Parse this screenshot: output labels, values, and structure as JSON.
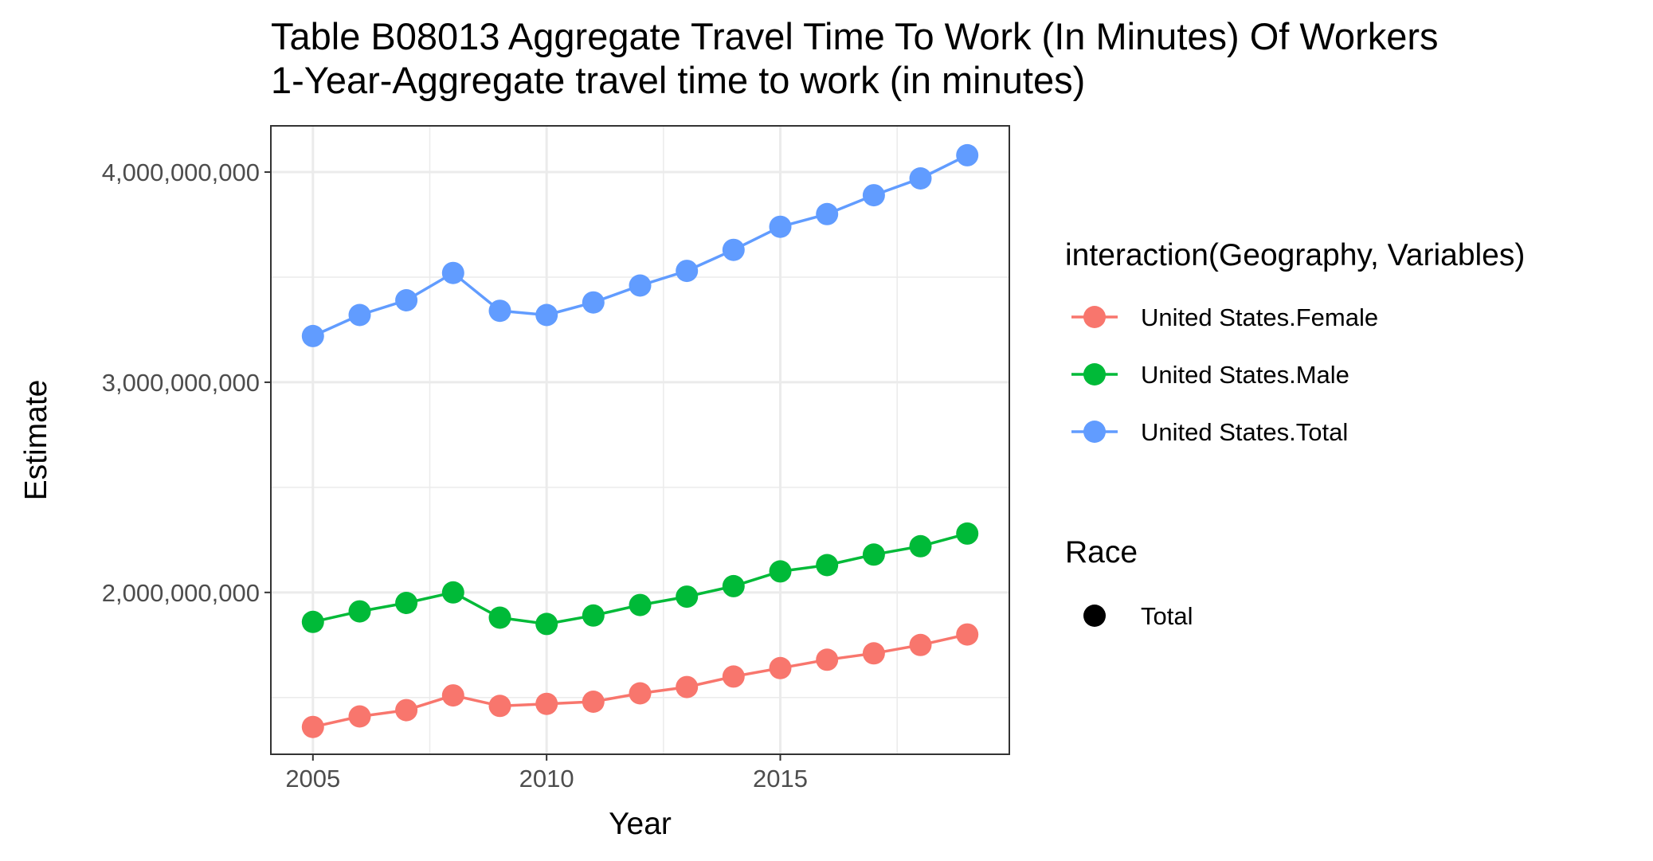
{
  "chart_data": {
    "type": "line",
    "title": "Table B08013 Aggregate Travel Time To Work (In Minutes) Of Workers",
    "subtitle": "1-Year-Aggregate travel time to work (in minutes)",
    "xlabel": "Year",
    "ylabel": "Estimate",
    "x": [
      2005,
      2006,
      2007,
      2008,
      2009,
      2010,
      2011,
      2012,
      2013,
      2014,
      2015,
      2016,
      2017,
      2018,
      2019
    ],
    "xlim": [
      2004.1,
      2019.9
    ],
    "ylim": [
      1230000000,
      4220000000
    ],
    "x_ticks": [
      2005,
      2010,
      2015
    ],
    "x_tick_labels": [
      "2005",
      "2010",
      "2015"
    ],
    "y_ticks": [
      2000000000,
      3000000000,
      4000000000
    ],
    "y_tick_labels": [
      "2,000,000,000",
      "3,000,000,000",
      "4,000,000,000"
    ],
    "grid": true,
    "legend_position": "right",
    "series": [
      {
        "name": "United States.Female",
        "color": "#F8766D",
        "values": [
          1360000000,
          1410000000,
          1440000000,
          1510000000,
          1460000000,
          1470000000,
          1480000000,
          1520000000,
          1550000000,
          1600000000,
          1640000000,
          1680000000,
          1710000000,
          1750000000,
          1800000000
        ]
      },
      {
        "name": "United States.Male",
        "color": "#00BA38",
        "values": [
          1860000000,
          1910000000,
          1950000000,
          2000000000,
          1880000000,
          1850000000,
          1890000000,
          1940000000,
          1980000000,
          2030000000,
          2100000000,
          2130000000,
          2180000000,
          2220000000,
          2280000000
        ]
      },
      {
        "name": "United States.Total",
        "color": "#619CFF",
        "values": [
          3220000000,
          3320000000,
          3390000000,
          3520000000,
          3340000000,
          3320000000,
          3380000000,
          3460000000,
          3530000000,
          3630000000,
          3740000000,
          3800000000,
          3890000000,
          3970000000,
          4080000000
        ]
      }
    ],
    "legend": {
      "color_title": "interaction(Geography, Variables)",
      "color_entries": [
        "United States.Female",
        "United States.Male",
        "United States.Total"
      ],
      "shape_title": "Race",
      "shape_entries": [
        "Total"
      ]
    }
  }
}
